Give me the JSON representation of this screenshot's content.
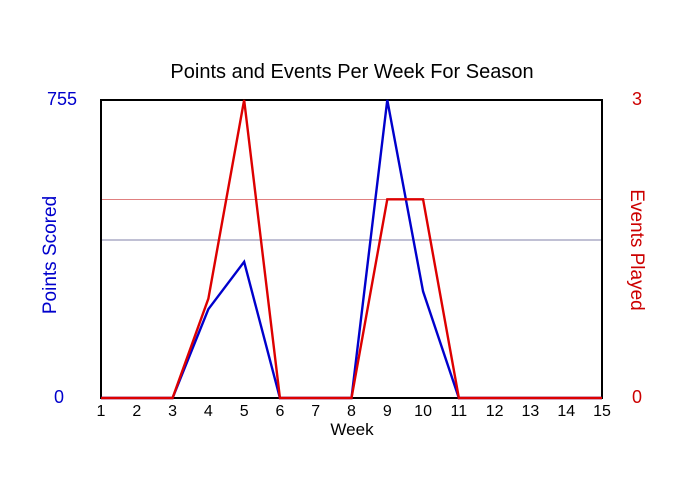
{
  "page": {
    "background": "#ffffff"
  },
  "chart_data": {
    "type": "line",
    "title": "Points and Events Per Week For Season",
    "xlabel": "Week",
    "x": [
      1,
      2,
      3,
      4,
      5,
      6,
      7,
      8,
      9,
      10,
      11,
      12,
      13,
      14,
      15
    ],
    "series": [
      {
        "name": "Points Scored",
        "axis": "left",
        "color": "#0000CC",
        "values": [
          0,
          0,
          0,
          225,
          345,
          0,
          0,
          0,
          755,
          270,
          0,
          0,
          0,
          0,
          0
        ]
      },
      {
        "name": "Events Played",
        "axis": "right",
        "color": "#DD0000",
        "values": [
          0,
          0,
          0,
          1,
          3,
          0,
          0,
          0,
          2,
          2,
          0,
          0,
          0,
          0,
          0
        ]
      }
    ],
    "axes": {
      "left": {
        "label": "Points Scored",
        "color": "#0000CC",
        "min": 0,
        "max": 755,
        "ticks": [
          "0",
          "755"
        ]
      },
      "right": {
        "label": "Events Played",
        "color": "#CC0000",
        "min": 0,
        "max": 3,
        "ticks": [
          "0",
          "3"
        ]
      }
    },
    "reference_lines": [
      {
        "axis": "left",
        "value": 400,
        "color": "#8080A8"
      },
      {
        "axis": "right",
        "value": 2,
        "color": "#E08080"
      }
    ],
    "grid": "off",
    "legend": "none",
    "xlim": [
      1,
      15
    ]
  }
}
